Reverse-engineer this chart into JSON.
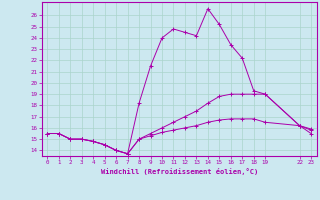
{
  "xlabel": "Windchill (Refroidissement éolien,°C)",
  "background_color": "#cce8f0",
  "grid_color": "#aad4cc",
  "line_color": "#aa00aa",
  "x_ticks": [
    0,
    1,
    2,
    3,
    4,
    5,
    6,
    7,
    8,
    9,
    10,
    11,
    12,
    13,
    14,
    15,
    16,
    17,
    18,
    19,
    22,
    23
  ],
  "ylim": [
    13.5,
    27.2
  ],
  "xlim": [
    -0.5,
    23.5
  ],
  "yticks": [
    14,
    15,
    16,
    17,
    18,
    19,
    20,
    21,
    22,
    23,
    24,
    25,
    26
  ],
  "series2_x": [
    0,
    1,
    2,
    3,
    4,
    5,
    6,
    7,
    8,
    9,
    10,
    11,
    12,
    13,
    14,
    15,
    16,
    17,
    18,
    19,
    22,
    23
  ],
  "series2_y": [
    15.5,
    15.5,
    15.0,
    15.0,
    14.8,
    14.5,
    14.0,
    13.7,
    18.2,
    21.5,
    24.0,
    24.8,
    24.5,
    24.2,
    26.6,
    25.2,
    23.4,
    22.2,
    19.3,
    19.0,
    16.2,
    15.9
  ],
  "series1_x": [
    0,
    1,
    2,
    3,
    4,
    5,
    6,
    7,
    8,
    9,
    10,
    11,
    12,
    13,
    14,
    15,
    16,
    17,
    18,
    19,
    22,
    23
  ],
  "series1_y": [
    15.5,
    15.5,
    15.0,
    15.0,
    14.8,
    14.5,
    14.0,
    13.7,
    15.0,
    15.5,
    16.0,
    16.5,
    17.0,
    17.5,
    18.2,
    18.8,
    19.0,
    19.0,
    19.0,
    19.0,
    16.2,
    15.5
  ],
  "series3_x": [
    0,
    1,
    2,
    3,
    4,
    5,
    6,
    7,
    8,
    9,
    10,
    11,
    12,
    13,
    14,
    15,
    16,
    17,
    18,
    19,
    22,
    23
  ],
  "series3_y": [
    15.5,
    15.5,
    15.0,
    15.0,
    14.8,
    14.5,
    14.0,
    13.7,
    15.0,
    15.3,
    15.6,
    15.8,
    16.0,
    16.2,
    16.5,
    16.7,
    16.8,
    16.8,
    16.8,
    16.5,
    16.2,
    15.8
  ]
}
